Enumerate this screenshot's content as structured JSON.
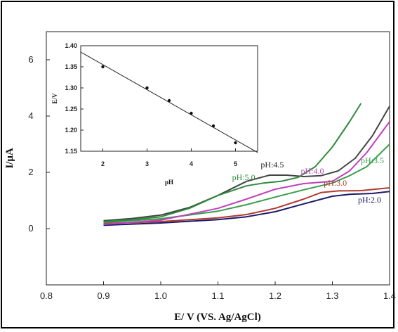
{
  "chart_data": [
    {
      "type": "line",
      "xlabel": "E/ V (VS. Ag/AgCl)",
      "ylabel": "I/μA",
      "xlim": [
        0.8,
        1.4
      ],
      "ylim": [
        -2,
        7
      ],
      "x_ticks": [
        "0.8",
        "0.9",
        "1.0",
        "1.1",
        "1.2",
        "1.3",
        "1.4"
      ],
      "y_ticks": [
        "0",
        "2",
        "4",
        "6"
      ],
      "grid": false,
      "series": [
        {
          "name": "pH:2.0",
          "color": "#1a1a6e",
          "x": [
            0.9,
            1.0,
            1.1,
            1.15,
            1.2,
            1.25,
            1.3,
            1.33,
            1.37,
            1.4
          ],
          "y": [
            0.12,
            0.2,
            0.32,
            0.42,
            0.6,
            0.88,
            1.15,
            1.22,
            1.25,
            1.32
          ]
        },
        {
          "name": "pH:3.0",
          "color": "#b03a2e",
          "x": [
            0.9,
            1.0,
            1.1,
            1.15,
            1.2,
            1.25,
            1.28,
            1.31,
            1.35,
            1.4
          ],
          "y": [
            0.18,
            0.25,
            0.38,
            0.5,
            0.72,
            1.05,
            1.28,
            1.34,
            1.35,
            1.45
          ]
        },
        {
          "name": "pH:3.5",
          "color": "#3a9e4a",
          "x": [
            0.9,
            1.0,
            1.1,
            1.15,
            1.2,
            1.25,
            1.3,
            1.33,
            1.36,
            1.4
          ],
          "y": [
            0.22,
            0.35,
            0.62,
            0.85,
            1.12,
            1.38,
            1.62,
            1.88,
            2.2,
            3.0
          ]
        },
        {
          "name": "pH:4.0",
          "color": "#c040c0",
          "x": [
            0.9,
            1.0,
            1.1,
            1.15,
            1.2,
            1.25,
            1.3,
            1.33,
            1.36,
            1.4
          ],
          "y": [
            0.15,
            0.3,
            0.72,
            1.05,
            1.4,
            1.6,
            1.68,
            2.05,
            2.7,
            3.8
          ]
        },
        {
          "name": "pH:4.5",
          "color": "#444444",
          "x": [
            0.9,
            0.95,
            1.0,
            1.05,
            1.1,
            1.15,
            1.19,
            1.22,
            1.25,
            1.28,
            1.31,
            1.34,
            1.37,
            1.4
          ],
          "y": [
            0.28,
            0.36,
            0.48,
            0.75,
            1.18,
            1.68,
            1.9,
            1.9,
            1.85,
            1.88,
            2.05,
            2.5,
            3.3,
            4.35
          ]
        },
        {
          "name": "pH:5.0",
          "color": "#2e8a3c",
          "x": [
            0.9,
            0.95,
            1.0,
            1.05,
            1.1,
            1.15,
            1.18,
            1.21,
            1.24,
            1.27,
            1.3,
            1.33,
            1.35
          ],
          "y": [
            0.25,
            0.32,
            0.42,
            0.72,
            1.18,
            1.52,
            1.62,
            1.68,
            1.82,
            2.2,
            2.9,
            3.8,
            4.45
          ]
        }
      ],
      "annotations": [
        {
          "text": "pH:5.0",
          "color": "#2e8a3c",
          "x": 1.145,
          "y": 1.72
        },
        {
          "text": "pH:4.5",
          "color": "#222222",
          "x": 1.195,
          "y": 2.18
        },
        {
          "text": "pH:4.0",
          "color": "#c040c0",
          "x": 1.265,
          "y": 1.95
        },
        {
          "text": "pH:3.5",
          "color": "#3a9e4a",
          "x": 1.37,
          "y": 2.32
        },
        {
          "text": "pH:3.0",
          "color": "#b03a2e",
          "x": 1.305,
          "y": 1.52
        },
        {
          "text": "pH:2.0",
          "color": "#1a1a6e",
          "x": 1.365,
          "y": 0.92
        }
      ]
    },
    {
      "type": "scatter",
      "title": "",
      "xlabel": "pH",
      "ylabel": "E/V",
      "xlim": [
        1.5,
        5.5
      ],
      "ylim": [
        1.15,
        1.4
      ],
      "x_ticks": [
        "2",
        "3",
        "4",
        "5"
      ],
      "y_ticks": [
        "1.15",
        "1.20",
        "1.25",
        "1.30",
        "1.35",
        "1.40"
      ],
      "x": [
        2.0,
        3.0,
        3.5,
        4.0,
        4.5,
        5.0
      ],
      "y": [
        1.35,
        1.3,
        1.27,
        1.24,
        1.21,
        1.17
      ],
      "fit_line": {
        "x": [
          1.5,
          5.5
        ],
        "y": [
          1.385,
          1.147
        ]
      }
    }
  ]
}
